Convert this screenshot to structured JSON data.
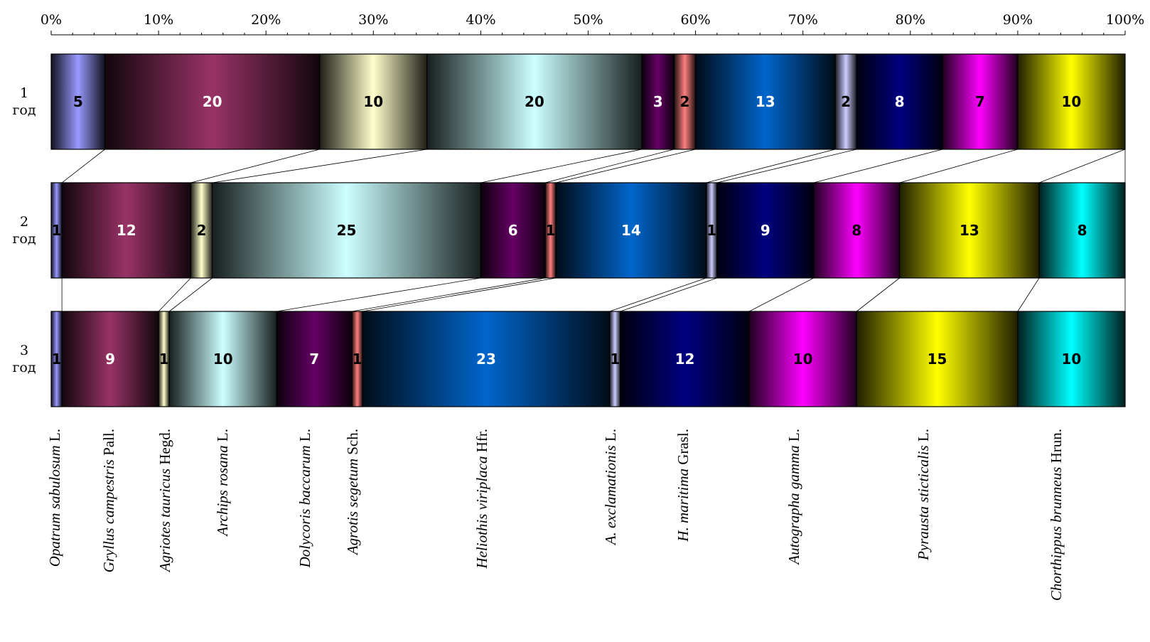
{
  "chart_data": {
    "type": "bar",
    "stacked": true,
    "percent_stacked": true,
    "orientation": "horizontal",
    "x_axis": {
      "position": "top",
      "range": [
        0,
        100
      ],
      "ticks": [
        "0%",
        "10%",
        "20%",
        "30%",
        "40%",
        "50%",
        "60%",
        "70%",
        "80%",
        "90%",
        "100%"
      ]
    },
    "rows": [
      {
        "label": [
          "1",
          "год"
        ],
        "values": [
          5,
          20,
          10,
          20,
          3,
          2,
          13,
          2,
          8,
          7,
          10,
          0
        ]
      },
      {
        "label": [
          "2",
          "год"
        ],
        "values": [
          1,
          12,
          2,
          25,
          6,
          1,
          14,
          1,
          9,
          8,
          13,
          8
        ]
      },
      {
        "label": [
          "3",
          "год"
        ],
        "values": [
          1,
          9,
          1,
          10,
          7,
          1,
          23,
          1,
          12,
          10,
          15,
          10
        ]
      }
    ],
    "series": [
      {
        "name": [
          "Opatrum sabulosum",
          " L."
        ],
        "color": "#9999ff",
        "label_color": "#000000"
      },
      {
        "name": [
          "Gryllus campestris",
          " Pall."
        ],
        "color": "#993366",
        "label_color": "#ffffff"
      },
      {
        "name": [
          "Agriotes tauricus",
          " Hegd."
        ],
        "color": "#ffffcc",
        "label_color": "#000000"
      },
      {
        "name": [
          "Archips rosana",
          " L."
        ],
        "color": "#ccffff",
        "label_color": "#000000"
      },
      {
        "name": [
          "Dolycoris baccarum",
          " L."
        ],
        "color": "#660066",
        "label_color": "#ffffff"
      },
      {
        "name": [
          "Agrotis segetum",
          " Sch."
        ],
        "color": "#ff8080",
        "label_color": "#000000"
      },
      {
        "name": [
          "Heliothis viriplaca",
          " Hfr."
        ],
        "color": "#0066cc",
        "label_color": "#ffffff"
      },
      {
        "name": [
          "A. exclamationis",
          " L."
        ],
        "color": "#ccccff",
        "label_color": "#000000"
      },
      {
        "name": [
          "H. maritima",
          " Grasl."
        ],
        "color": "#000080",
        "label_color": "#ffffff"
      },
      {
        "name": [
          "Autographa gamma",
          " L."
        ],
        "color": "#ff00ff",
        "label_color": "#000000"
      },
      {
        "name": [
          "Pyrausta sticticalis",
          " L."
        ],
        "color": "#ffff00",
        "label_color": "#000000"
      },
      {
        "name": [
          "Chorthippus brunneus",
          " Hrun."
        ],
        "color": "#00ffff",
        "label_color": "#000000"
      }
    ],
    "series_lines": true,
    "legend": "bottom"
  }
}
